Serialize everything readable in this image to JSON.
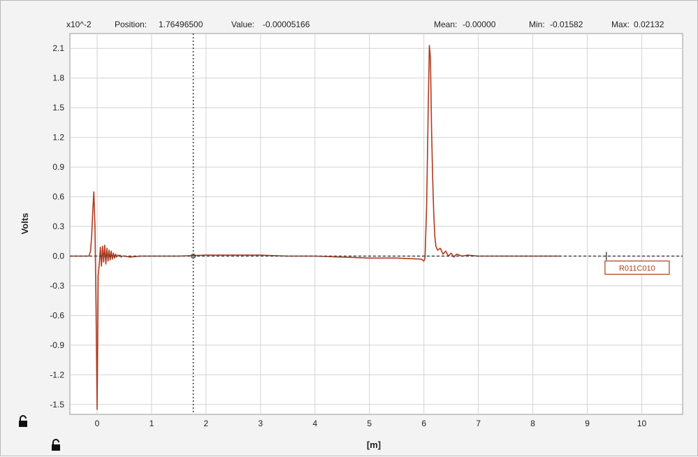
{
  "header": {
    "scale_label": "x10^-2",
    "position_label": "Position:",
    "position_value": "1.76496500",
    "value_label": "Value:",
    "value_value": "-0.00005166",
    "mean_label": "Mean:",
    "mean_value": "-0.00000",
    "min_label": "Min:",
    "min_value": "-0.01582",
    "max_label": "Max:",
    "max_value": "0.02132"
  },
  "icons": {
    "y_lock": "lock-icon",
    "x_lock": "lock-icon"
  },
  "colors": {
    "trace": "#b03a1e",
    "grid": "#d2d2d2",
    "baseline": "#444444",
    "cursor": "#333333",
    "marker_border": "#b03a1e",
    "plot_bg": "#ffffff",
    "frame_bg": "#f3f3f3"
  },
  "chart_data": {
    "type": "line",
    "title": "",
    "xlabel": "[m]",
    "ylabel": "Volts",
    "xlim": [
      -0.5,
      10.75
    ],
    "ylim": [
      -1.6,
      2.25
    ],
    "x_ticks": [
      0,
      1,
      2,
      3,
      4,
      5,
      6,
      7,
      8,
      9,
      10
    ],
    "y_ticks": [
      2.1,
      1.8,
      1.5,
      1.2,
      0.9,
      0.6,
      0.3,
      0.0,
      -0.3,
      -0.6,
      -0.9,
      -1.2,
      -1.5
    ],
    "y_tick_labels": [
      "2.1",
      "1.8",
      "1.5",
      "1.2",
      "0.9",
      "0.6",
      "0.3",
      "0.0",
      "-0.3",
      "-0.6",
      "-0.9",
      "-1.2",
      "-1.5"
    ],
    "grid": true,
    "cursor_x": 1.765,
    "series": [
      {
        "name": "",
        "x": [
          -0.5,
          -0.15,
          -0.12,
          -0.1,
          -0.08,
          -0.06,
          -0.04,
          -0.02,
          0.0,
          0.01,
          0.02,
          0.04,
          0.06,
          0.08,
          0.1,
          0.12,
          0.14,
          0.16,
          0.18,
          0.2,
          0.22,
          0.24,
          0.26,
          0.28,
          0.3,
          0.32,
          0.34,
          0.36,
          0.38,
          0.4,
          0.42,
          0.44,
          0.46,
          0.5,
          0.6,
          0.8,
          1.0,
          1.5,
          2.0,
          2.5,
          3.0,
          3.5,
          4.0,
          4.5,
          5.0,
          5.5,
          5.95,
          6.0,
          6.02,
          6.05,
          6.08,
          6.1,
          6.12,
          6.14,
          6.16,
          6.18,
          6.2,
          6.22,
          6.25,
          6.3,
          6.35,
          6.4,
          6.45,
          6.5,
          6.55,
          6.6,
          6.7,
          6.8,
          7.0,
          7.5,
          8.0,
          8.5
        ],
        "y": [
          0.0,
          0.0,
          0.05,
          0.2,
          0.45,
          0.65,
          0.3,
          -0.5,
          -1.55,
          -0.9,
          -0.2,
          -0.08,
          0.09,
          -0.1,
          0.1,
          -0.06,
          0.11,
          -0.08,
          0.08,
          -0.05,
          0.06,
          -0.04,
          0.05,
          -0.03,
          0.03,
          -0.02,
          0.02,
          -0.01,
          0.01,
          0.0,
          0.01,
          -0.01,
          0.0,
          0.0,
          -0.01,
          0.0,
          0.0,
          0.0,
          0.01,
          0.01,
          0.01,
          0.0,
          0.0,
          -0.01,
          -0.02,
          -0.02,
          -0.03,
          -0.05,
          -0.02,
          0.5,
          1.5,
          2.13,
          2.0,
          1.3,
          0.8,
          0.45,
          0.2,
          0.1,
          0.06,
          0.08,
          0.02,
          0.05,
          0.0,
          0.03,
          -0.01,
          0.02,
          0.0,
          0.01,
          0.0,
          0.0,
          0.0,
          0.0
        ]
      }
    ],
    "annotations": [
      {
        "text": "R011C010",
        "x": 9.35,
        "y": 0.0
      }
    ]
  }
}
